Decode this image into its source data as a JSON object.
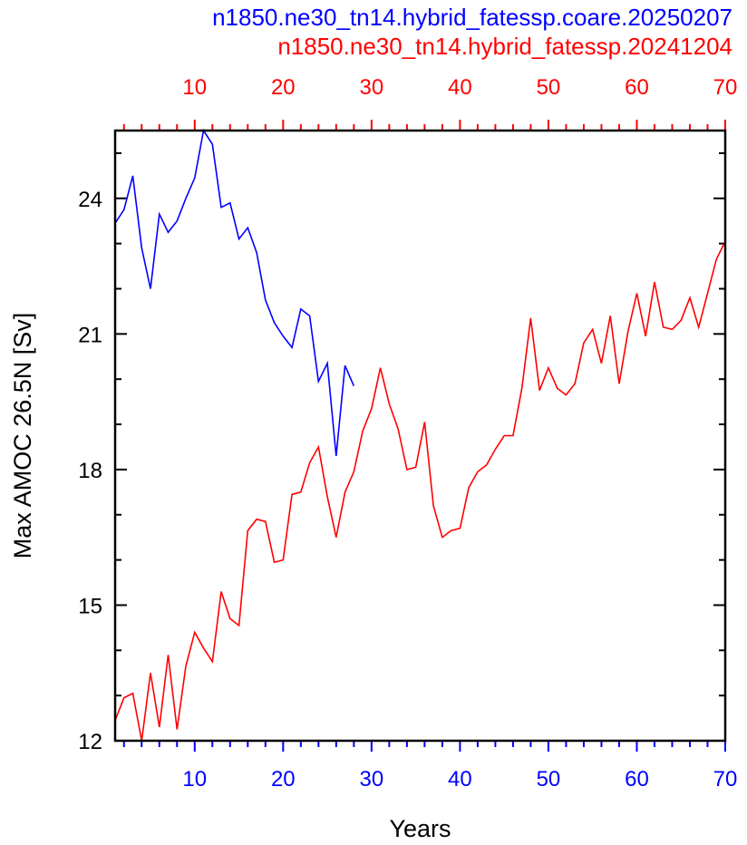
{
  "titles": {
    "blue": "n1850.ne30_tn14.hybrid_fatessp.coare.20250207",
    "red": "n1850.ne30_tn14.hybrid_fatessp.20241204"
  },
  "chart_data": {
    "type": "line",
    "xlabel": "Years",
    "ylabel": "Max AMOC 26.5N [Sv]",
    "xlim": [
      1,
      70
    ],
    "ylim": [
      12,
      25.5
    ],
    "x_ticks": [
      10,
      20,
      30,
      40,
      50,
      60,
      70
    ],
    "x_tick_labels": [
      "10",
      "20",
      "30",
      "40",
      "50",
      "60",
      "70"
    ],
    "y_ticks": [
      12,
      15,
      18,
      21,
      24
    ],
    "y_tick_labels": [
      "12",
      "15",
      "18",
      "21",
      "24"
    ],
    "grid": false,
    "legend": "none",
    "series": [
      {
        "name": "n1850.ne30_tn14.hybrid_fatessp.coare.20250207",
        "color": "#0000ff",
        "axis": "bottom",
        "x": [
          1,
          2,
          3,
          4,
          5,
          6,
          7,
          8,
          9,
          10,
          11,
          12,
          13,
          14,
          15,
          16,
          17,
          18,
          19,
          20,
          21,
          22,
          23,
          24,
          25,
          26,
          27,
          28
        ],
        "y": [
          23.45,
          23.75,
          24.5,
          22.9,
          22.0,
          23.65,
          23.25,
          23.5,
          24.0,
          24.45,
          25.5,
          25.2,
          23.8,
          23.9,
          23.1,
          23.35,
          22.8,
          21.75,
          21.25,
          20.95,
          20.7,
          21.55,
          21.4,
          19.95,
          20.35,
          18.3,
          20.3,
          19.85
        ]
      },
      {
        "name": "n1850.ne30_tn14.hybrid_fatessp.20241204",
        "color": "#ff0000",
        "axis": "top",
        "x": [
          1,
          2,
          3,
          4,
          5,
          6,
          7,
          8,
          9,
          10,
          11,
          12,
          13,
          14,
          15,
          16,
          17,
          18,
          19,
          20,
          21,
          22,
          23,
          24,
          25,
          26,
          27,
          28,
          29,
          30,
          31,
          32,
          33,
          34,
          35,
          36,
          37,
          38,
          39,
          40,
          41,
          42,
          43,
          44,
          45,
          46,
          47,
          48,
          49,
          50,
          51,
          52,
          53,
          54,
          55,
          56,
          57,
          58,
          59,
          60,
          61,
          62,
          63,
          64,
          65,
          66,
          67,
          68,
          69,
          70
        ],
        "y": [
          12.45,
          12.95,
          13.05,
          12.0,
          13.5,
          12.3,
          13.9,
          12.25,
          13.65,
          14.4,
          14.05,
          13.75,
          15.3,
          14.7,
          14.55,
          16.65,
          16.9,
          16.85,
          15.95,
          16.0,
          17.45,
          17.5,
          18.15,
          18.5,
          17.4,
          16.5,
          17.5,
          17.95,
          18.85,
          19.35,
          20.25,
          19.45,
          18.9,
          18.0,
          18.05,
          19.05,
          17.2,
          16.5,
          16.65,
          16.7,
          17.6,
          17.95,
          18.1,
          18.45,
          18.75,
          18.75,
          19.8,
          21.35,
          19.75,
          20.25,
          19.8,
          19.65,
          19.9,
          20.8,
          21.1,
          20.35,
          21.4,
          19.9,
          21.05,
          21.9,
          20.95,
          22.15,
          21.15,
          21.1,
          21.3,
          21.8,
          21.15,
          21.9,
          22.65,
          23.05
        ]
      }
    ]
  },
  "colors": {
    "axis": "#000000",
    "bottom_axis_labels": "#0000ff",
    "top_axis_labels": "#ff0000"
  }
}
